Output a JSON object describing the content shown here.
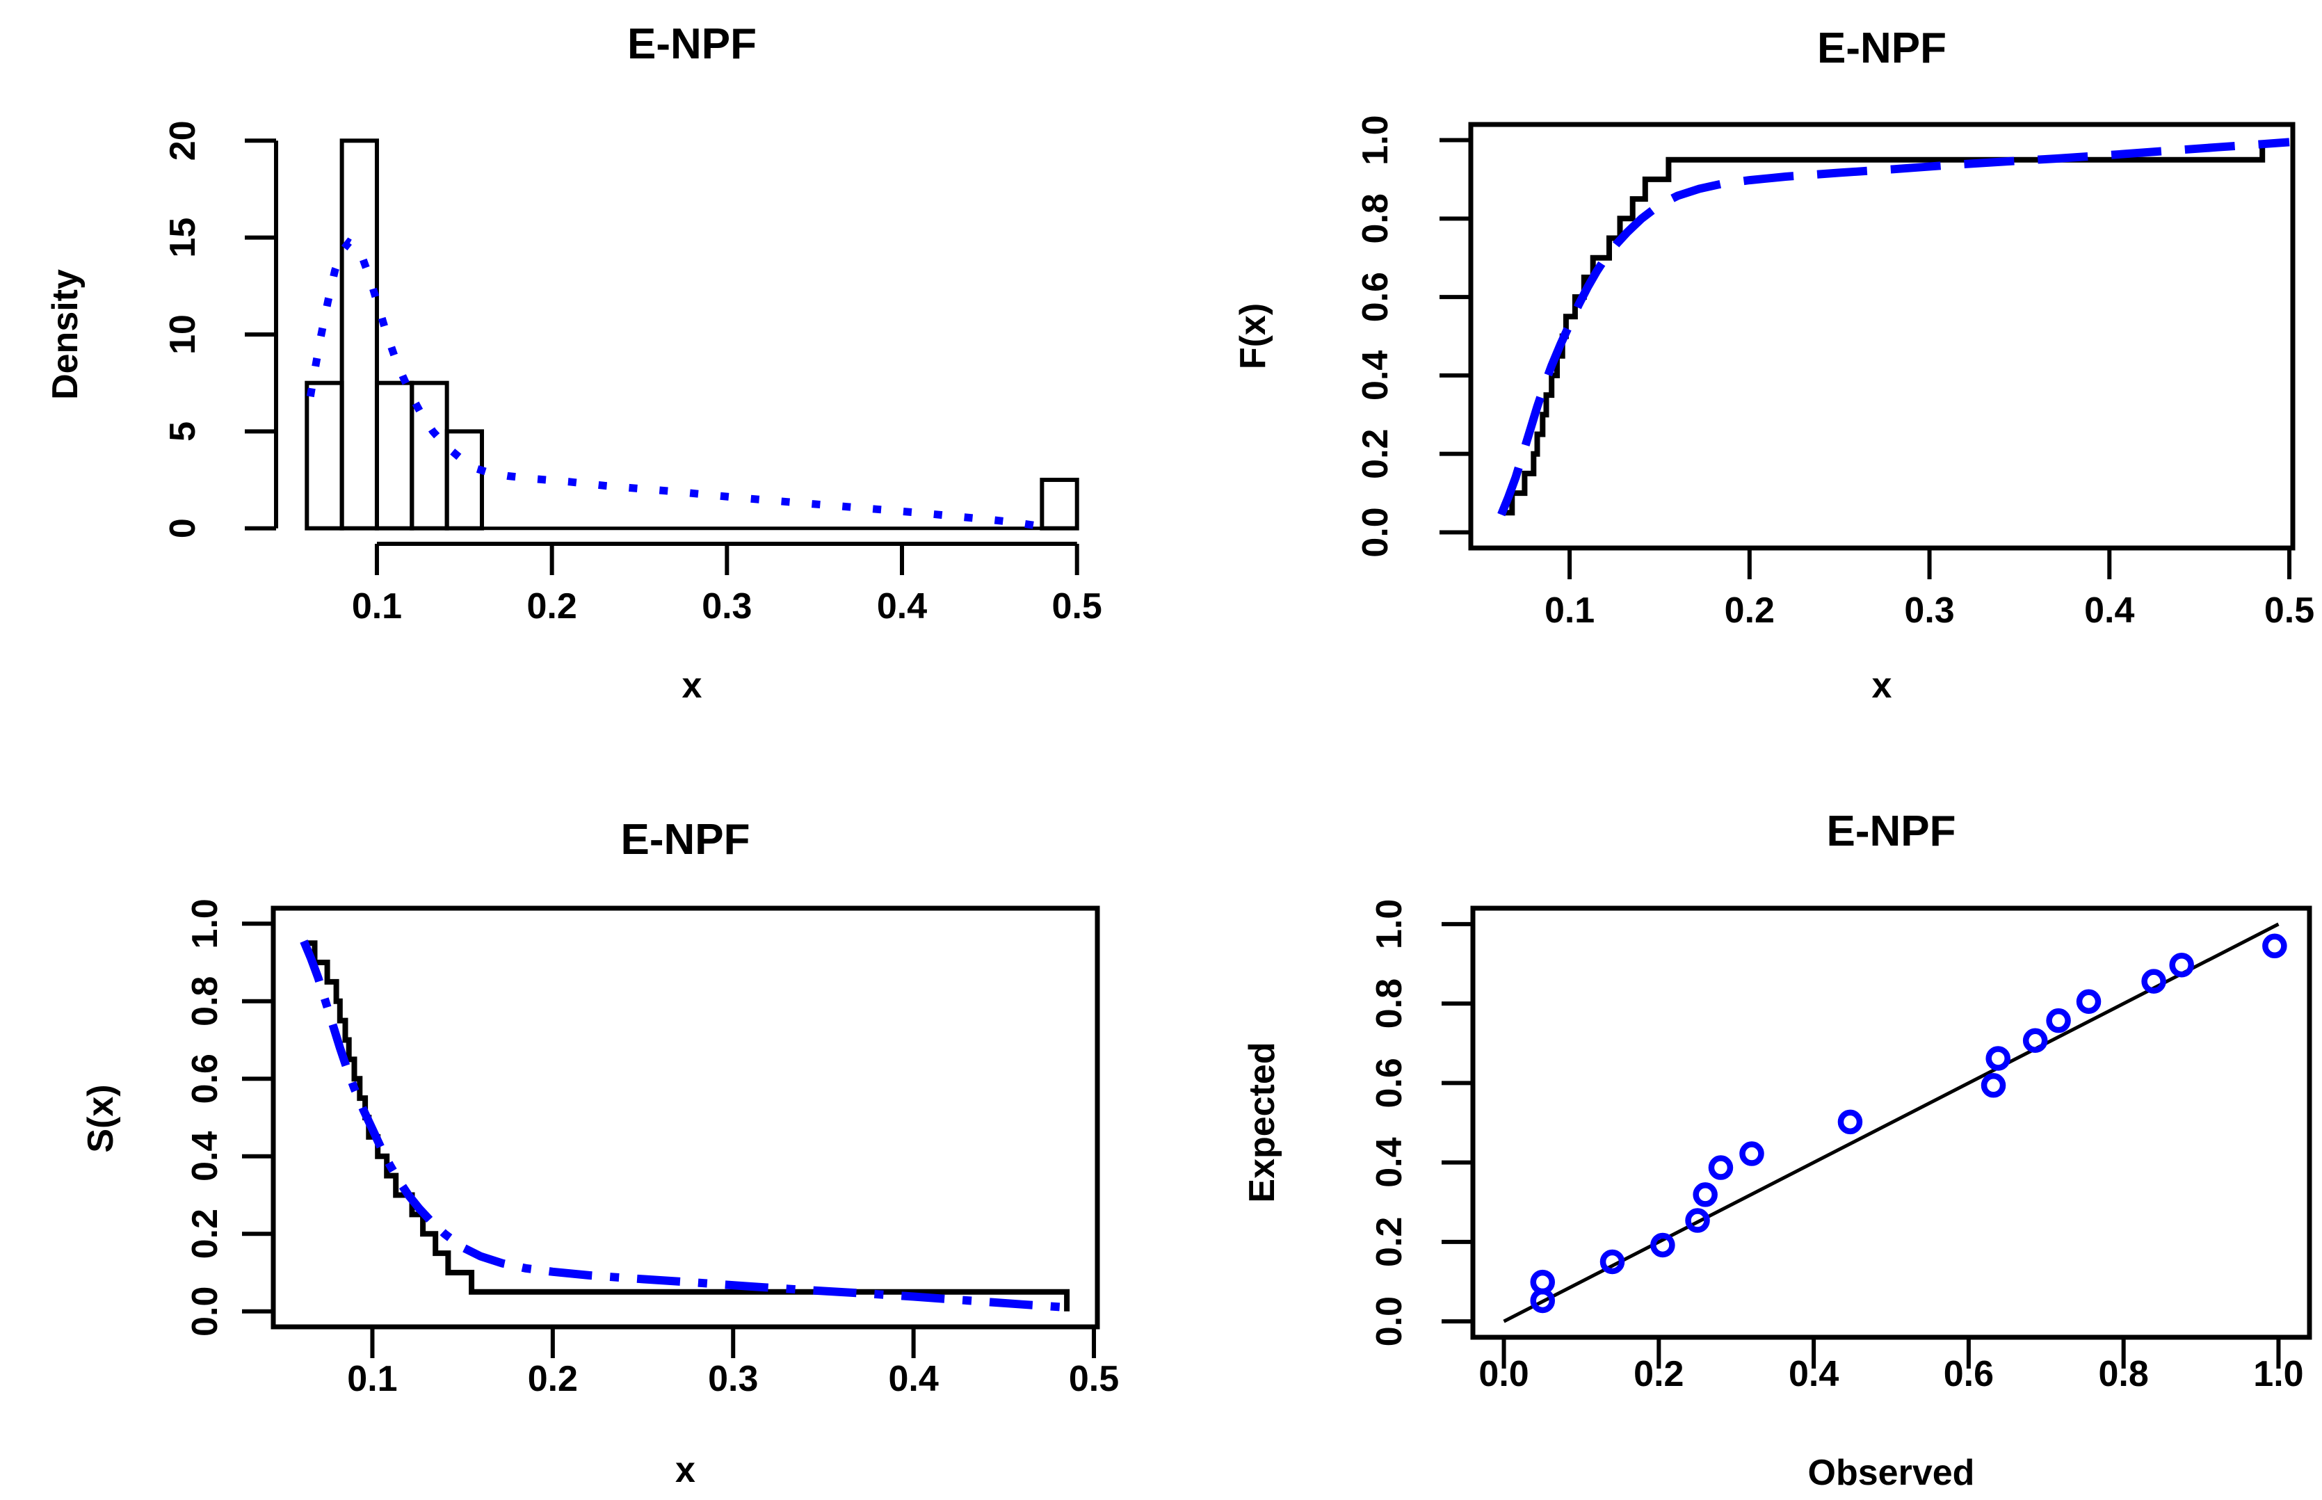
{
  "page": {
    "background": "#ffffff",
    "accent_blue": "#0000ff",
    "line_black": "#000000"
  },
  "chart_data": [
    {
      "id": "histogram-with-fitted-density",
      "type": "bar",
      "title": "E-NPF",
      "xlabel": "x",
      "ylabel": "Density",
      "xlim": [
        0.06,
        0.5
      ],
      "ylim": [
        0,
        20
      ],
      "x_ticks": [
        0.1,
        0.2,
        0.3,
        0.4,
        0.5
      ],
      "x_tick_labels": [
        "0.1",
        "0.2",
        "0.3",
        "0.4",
        "0.5"
      ],
      "y_ticks": [
        0,
        5,
        10,
        15,
        20
      ],
      "y_tick_labels": [
        "0",
        "5",
        "10",
        "15",
        "20"
      ],
      "grid": false,
      "bars": [
        {
          "x0": 0.06,
          "x1": 0.08,
          "density": 7.5
        },
        {
          "x0": 0.08,
          "x1": 0.1,
          "density": 20
        },
        {
          "x0": 0.1,
          "x1": 0.12,
          "density": 7.5
        },
        {
          "x0": 0.12,
          "x1": 0.14,
          "density": 7.5
        },
        {
          "x0": 0.14,
          "x1": 0.16,
          "density": 5
        },
        {
          "x0": 0.48,
          "x1": 0.5,
          "density": 2.5
        }
      ],
      "baseline_span": [
        0.06,
        0.5
      ],
      "fitted_density_curve": {
        "name": "fitted E-NPF density",
        "color": "#0000ff",
        "style": "dotted",
        "points": [
          [
            0.062,
            6.8
          ],
          [
            0.065,
            8.4
          ],
          [
            0.068,
            9.9
          ],
          [
            0.072,
            11.7
          ],
          [
            0.076,
            13.3
          ],
          [
            0.08,
            14.3
          ],
          [
            0.084,
            14.75
          ],
          [
            0.088,
            14.55
          ],
          [
            0.092,
            13.9
          ],
          [
            0.096,
            12.9
          ],
          [
            0.1,
            11.7
          ],
          [
            0.105,
            10.2
          ],
          [
            0.11,
            8.9
          ],
          [
            0.115,
            7.8
          ],
          [
            0.12,
            6.8
          ],
          [
            0.126,
            5.8
          ],
          [
            0.132,
            5.0
          ],
          [
            0.14,
            4.2
          ],
          [
            0.148,
            3.6
          ],
          [
            0.156,
            3.1
          ],
          [
            0.165,
            2.85
          ],
          [
            0.175,
            2.7
          ],
          [
            0.19,
            2.55
          ],
          [
            0.21,
            2.4
          ],
          [
            0.23,
            2.2
          ],
          [
            0.25,
            2.05
          ],
          [
            0.27,
            1.9
          ],
          [
            0.29,
            1.72
          ],
          [
            0.31,
            1.55
          ],
          [
            0.33,
            1.4
          ],
          [
            0.35,
            1.25
          ],
          [
            0.37,
            1.1
          ],
          [
            0.39,
            0.95
          ],
          [
            0.41,
            0.8
          ],
          [
            0.43,
            0.62
          ],
          [
            0.45,
            0.45
          ],
          [
            0.465,
            0.3
          ],
          [
            0.478,
            0.12
          ]
        ]
      }
    },
    {
      "id": "empirical-vs-fitted-cdf",
      "type": "line",
      "title": "E-NPF",
      "xlabel": "x",
      "ylabel": "F(x)",
      "xlim": [
        0.062,
        0.485
      ],
      "ylim": [
        0,
        1
      ],
      "x_ticks": [
        0.1,
        0.2,
        0.3,
        0.4,
        0.5
      ],
      "x_tick_labels": [
        "0.1",
        "0.2",
        "0.3",
        "0.4",
        "0.5"
      ],
      "y_ticks": [
        0.0,
        0.2,
        0.4,
        0.6,
        0.8,
        1.0
      ],
      "y_tick_labels": [
        "0.0",
        "0.2",
        "0.4",
        "0.6",
        "0.8",
        "1.0"
      ],
      "grid": false,
      "ecdf": {
        "name": "empirical CDF (step)",
        "color": "#000000",
        "direction": "up",
        "values": [
          0.063,
          0.068,
          0.075,
          0.08,
          0.082,
          0.085,
          0.087,
          0.09,
          0.093,
          0.096,
          0.098,
          0.103,
          0.108,
          0.113,
          0.122,
          0.128,
          0.135,
          0.142,
          0.155,
          0.485
        ]
      },
      "fitted_curve": {
        "name": "fitted E-NPF CDF",
        "color": "#0000ff",
        "style": "longdash",
        "points": [
          [
            0.062,
            0.045
          ],
          [
            0.066,
            0.09
          ],
          [
            0.07,
            0.14
          ],
          [
            0.074,
            0.2
          ],
          [
            0.078,
            0.26
          ],
          [
            0.082,
            0.32
          ],
          [
            0.086,
            0.375
          ],
          [
            0.09,
            0.425
          ],
          [
            0.095,
            0.48
          ],
          [
            0.1,
            0.53
          ],
          [
            0.105,
            0.58
          ],
          [
            0.11,
            0.625
          ],
          [
            0.115,
            0.665
          ],
          [
            0.12,
            0.7
          ],
          [
            0.126,
            0.735
          ],
          [
            0.132,
            0.765
          ],
          [
            0.14,
            0.8
          ],
          [
            0.15,
            0.835
          ],
          [
            0.16,
            0.858
          ],
          [
            0.172,
            0.876
          ],
          [
            0.185,
            0.889
          ],
          [
            0.2,
            0.898
          ],
          [
            0.22,
            0.907
          ],
          [
            0.25,
            0.917
          ],
          [
            0.28,
            0.926
          ],
          [
            0.31,
            0.936
          ],
          [
            0.34,
            0.945
          ],
          [
            0.37,
            0.953
          ],
          [
            0.4,
            0.962
          ],
          [
            0.43,
            0.972
          ],
          [
            0.46,
            0.982
          ],
          [
            0.485,
            0.99
          ],
          [
            0.5,
            0.995
          ]
        ]
      }
    },
    {
      "id": "empirical-vs-fitted-survival",
      "type": "line",
      "title": "E-NPF",
      "xlabel": "x",
      "ylabel": "S(x)",
      "xlim": [
        0.062,
        0.485
      ],
      "ylim": [
        0,
        1
      ],
      "x_ticks": [
        0.1,
        0.2,
        0.3,
        0.4,
        0.5
      ],
      "x_tick_labels": [
        "0.1",
        "0.2",
        "0.3",
        "0.4",
        "0.5"
      ],
      "y_ticks": [
        0.0,
        0.2,
        0.4,
        0.6,
        0.8,
        1.0
      ],
      "y_tick_labels": [
        "0.0",
        "0.2",
        "0.4",
        "0.6",
        "0.8",
        "1.0"
      ],
      "grid": false,
      "ecdf": {
        "name": "empirical survival (step)",
        "color": "#000000",
        "direction": "down",
        "values": [
          0.063,
          0.068,
          0.075,
          0.08,
          0.082,
          0.085,
          0.087,
          0.09,
          0.093,
          0.096,
          0.098,
          0.103,
          0.108,
          0.113,
          0.122,
          0.128,
          0.135,
          0.142,
          0.155,
          0.485
        ]
      },
      "fitted_curve": {
        "name": "fitted E-NPF survival",
        "color": "#0000ff",
        "style": "dotdash",
        "points": [
          [
            0.062,
            0.955
          ],
          [
            0.066,
            0.91
          ],
          [
            0.07,
            0.86
          ],
          [
            0.074,
            0.8
          ],
          [
            0.078,
            0.74
          ],
          [
            0.082,
            0.68
          ],
          [
            0.086,
            0.625
          ],
          [
            0.09,
            0.575
          ],
          [
            0.095,
            0.52
          ],
          [
            0.1,
            0.47
          ],
          [
            0.105,
            0.42
          ],
          [
            0.11,
            0.375
          ],
          [
            0.115,
            0.335
          ],
          [
            0.12,
            0.3
          ],
          [
            0.126,
            0.265
          ],
          [
            0.132,
            0.235
          ],
          [
            0.14,
            0.2
          ],
          [
            0.15,
            0.165
          ],
          [
            0.16,
            0.142
          ],
          [
            0.172,
            0.124
          ],
          [
            0.185,
            0.111
          ],
          [
            0.2,
            0.102
          ],
          [
            0.22,
            0.093
          ],
          [
            0.25,
            0.083
          ],
          [
            0.28,
            0.074
          ],
          [
            0.31,
            0.064
          ],
          [
            0.34,
            0.055
          ],
          [
            0.37,
            0.047
          ],
          [
            0.4,
            0.038
          ],
          [
            0.43,
            0.028
          ],
          [
            0.46,
            0.018
          ],
          [
            0.485,
            0.01
          ]
        ]
      }
    },
    {
      "id": "pp-plot",
      "type": "scatter",
      "title": "E-NPF",
      "xlabel": "Observed",
      "ylabel": "Expected",
      "xlim": [
        0,
        1
      ],
      "ylim": [
        0,
        1
      ],
      "x_ticks": [
        0.0,
        0.2,
        0.4,
        0.6,
        0.8,
        1.0
      ],
      "x_tick_labels": [
        "0.0",
        "0.2",
        "0.4",
        "0.6",
        "0.8",
        "1.0"
      ],
      "y_ticks": [
        0.0,
        0.2,
        0.4,
        0.6,
        0.8,
        1.0
      ],
      "y_tick_labels": [
        "0.0",
        "0.2",
        "0.4",
        "0.6",
        "0.8",
        "1.0"
      ],
      "grid": false,
      "reference_line": {
        "from": [
          0,
          0
        ],
        "to": [
          1,
          1
        ],
        "color": "#000000"
      },
      "points": {
        "name": "probability-probability points",
        "marker": "circle",
        "color": "#0000ff",
        "data": [
          [
            0.05,
            0.052
          ],
          [
            0.05,
            0.099
          ],
          [
            0.14,
            0.15
          ],
          [
            0.205,
            0.192
          ],
          [
            0.25,
            0.254
          ],
          [
            0.26,
            0.319
          ],
          [
            0.28,
            0.387
          ],
          [
            0.32,
            0.422
          ],
          [
            0.447,
            0.502
          ],
          [
            0.632,
            0.594
          ],
          [
            0.638,
            0.662
          ],
          [
            0.686,
            0.707
          ],
          [
            0.716,
            0.757
          ],
          [
            0.755,
            0.805
          ],
          [
            0.839,
            0.856
          ],
          [
            0.875,
            0.897
          ],
          [
            0.995,
            0.945
          ]
        ]
      }
    }
  ]
}
